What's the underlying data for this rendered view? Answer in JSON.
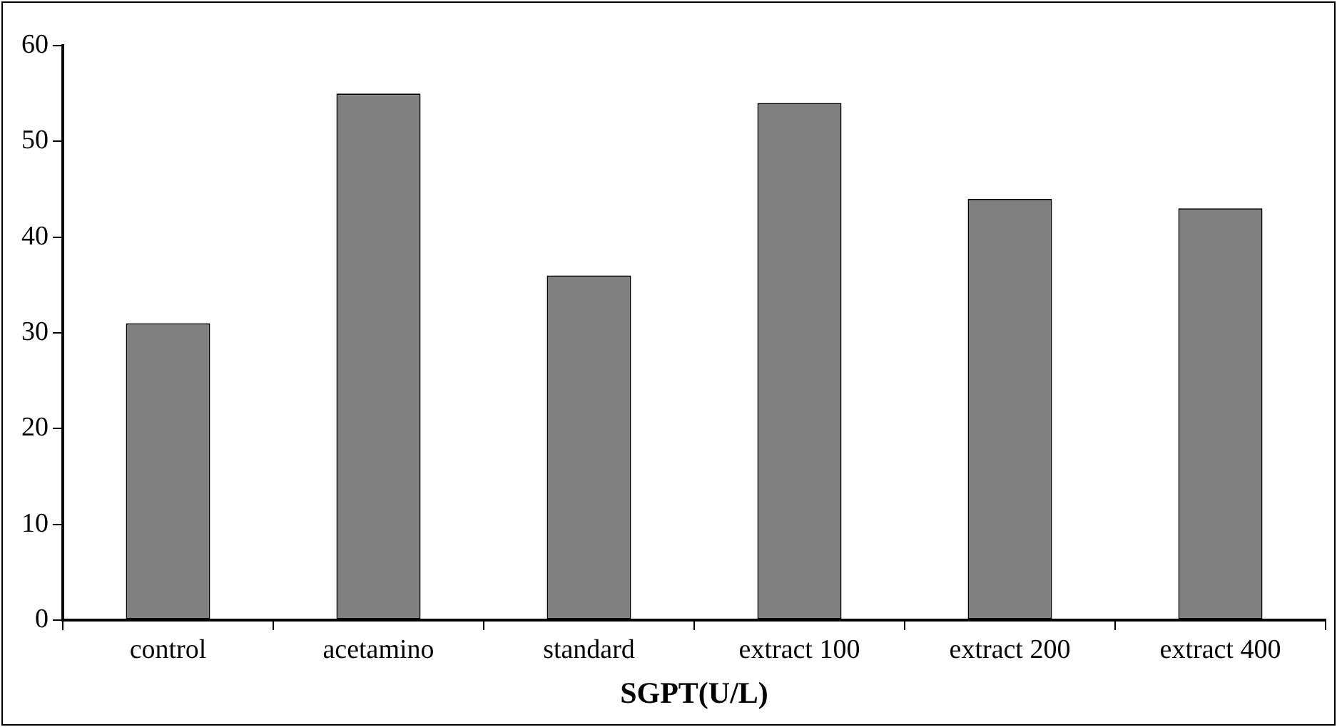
{
  "chart_data": {
    "type": "bar",
    "xlabel": "SGPT(U/L)",
    "categories": [
      "control",
      "acetamino",
      "standard",
      "extract 100",
      "extract 200",
      "extract 400"
    ],
    "values": [
      31,
      55,
      36,
      54,
      44,
      43
    ],
    "color": "#808080",
    "ylim": [
      0,
      60
    ],
    "yticks": [
      0,
      10,
      20,
      30,
      40,
      50,
      60
    ],
    "grid": false,
    "legend": false
  }
}
